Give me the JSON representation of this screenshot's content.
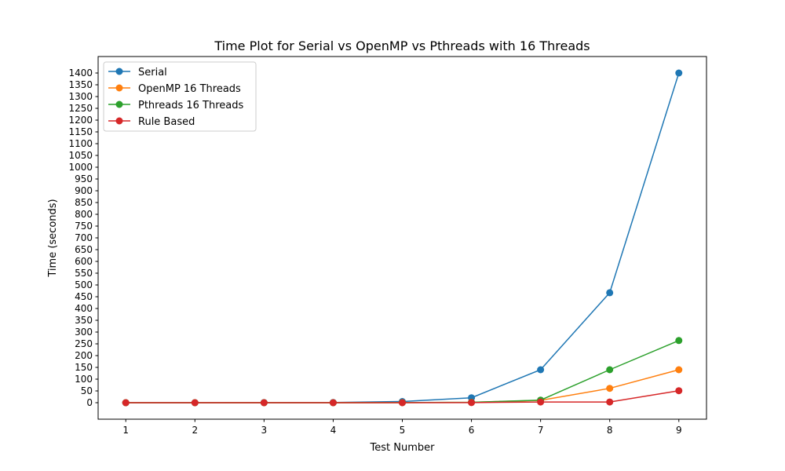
{
  "chart_data": {
    "type": "line",
    "title": "Time Plot for Serial vs OpenMP vs Pthreads with 16 Threads",
    "xlabel": "Test Number",
    "ylabel": "Time (seconds)",
    "x": [
      1,
      2,
      3,
      4,
      5,
      6,
      7,
      8,
      9
    ],
    "xlim": [
      0.6,
      9.4
    ],
    "ylim": [
      -70,
      1470
    ],
    "yticks": [
      0,
      50,
      100,
      150,
      200,
      250,
      300,
      350,
      400,
      450,
      500,
      550,
      600,
      650,
      700,
      750,
      800,
      850,
      900,
      950,
      1000,
      1050,
      1100,
      1150,
      1200,
      1250,
      1300,
      1350,
      1400
    ],
    "grid": false,
    "legend_position": "top-left",
    "series": [
      {
        "name": "Serial",
        "color": "#1f77b4",
        "values": [
          0,
          0,
          0.5,
          1,
          5,
          21,
          140,
          467,
          1400
        ]
      },
      {
        "name": "OpenMP 16 Threads",
        "color": "#ff7f0e",
        "values": [
          0,
          0,
          0,
          0,
          0.5,
          1.5,
          10,
          61,
          140
        ]
      },
      {
        "name": "Pthreads 16 Threads",
        "color": "#2ca02c",
        "values": [
          0,
          0,
          0,
          0,
          0.5,
          1.5,
          11,
          140,
          264
        ]
      },
      {
        "name": "Rule Based",
        "color": "#d62728",
        "values": [
          0,
          0,
          0,
          0,
          0,
          0.5,
          3,
          3,
          51
        ]
      }
    ]
  }
}
